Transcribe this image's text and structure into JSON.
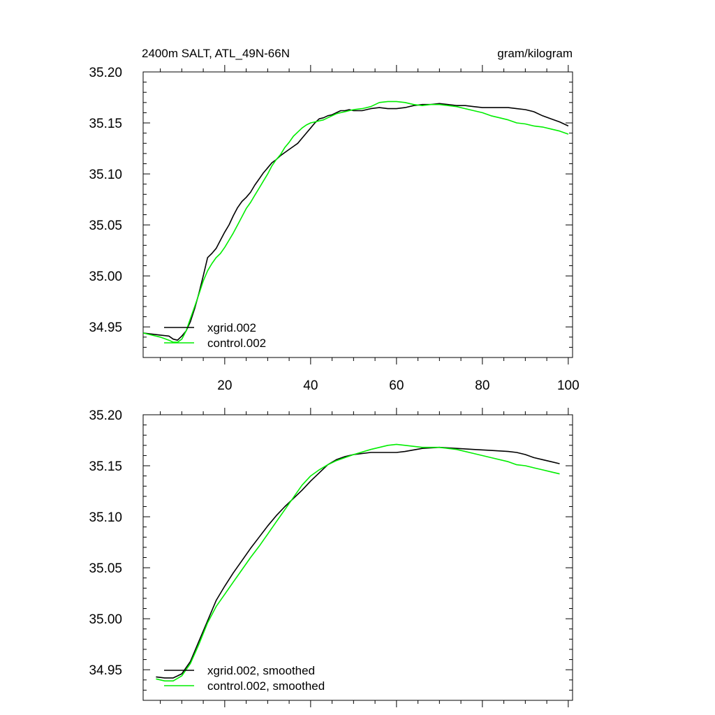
{
  "header": {
    "title": "2400m SALT, ATL_49N-66N",
    "units": "gram/kilogram"
  },
  "colors": {
    "xgrid": "#000000",
    "control": "#00ee00"
  },
  "chart_data": [
    {
      "type": "line",
      "xlim": [
        1,
        101
      ],
      "ylim": [
        34.92,
        35.2
      ],
      "yticks": [
        "35.20",
        "35.15",
        "35.10",
        "35.05",
        "35.00",
        "34.95"
      ],
      "xticks": [
        "20",
        "40",
        "60",
        "80",
        "100"
      ],
      "legend_position": "bottom-left",
      "series": [
        {
          "name": "xgrid.002",
          "x": [
            1,
            3,
            5,
            7,
            8,
            9,
            10,
            11,
            12,
            13,
            14,
            15,
            16,
            17,
            18,
            19,
            20,
            21,
            22,
            23,
            24,
            25,
            26,
            27,
            28,
            29,
            30,
            31,
            32,
            33,
            34,
            35,
            36,
            37,
            38,
            39,
            40,
            41,
            42,
            43,
            44,
            45,
            46,
            47,
            48,
            49,
            50,
            52,
            54,
            56,
            58,
            60,
            62,
            64,
            66,
            68,
            70,
            72,
            74,
            76,
            78,
            80,
            82,
            84,
            86,
            88,
            90,
            92,
            94,
            96,
            98,
            100
          ],
          "y": [
            34.944,
            34.943,
            34.942,
            34.941,
            34.938,
            34.937,
            34.941,
            34.946,
            34.955,
            34.968,
            34.983,
            35.0,
            35.018,
            35.022,
            35.027,
            35.035,
            35.043,
            35.05,
            35.059,
            35.067,
            35.073,
            35.077,
            35.082,
            35.089,
            35.095,
            35.101,
            35.106,
            35.111,
            35.114,
            35.118,
            35.121,
            35.124,
            35.127,
            35.13,
            35.135,
            35.14,
            35.145,
            35.15,
            35.154,
            35.155,
            35.157,
            35.158,
            35.16,
            35.162,
            35.162,
            35.163,
            35.162,
            35.162,
            35.164,
            35.165,
            35.164,
            35.164,
            35.165,
            35.167,
            35.168,
            35.168,
            35.169,
            35.168,
            35.167,
            35.167,
            35.166,
            35.165,
            35.165,
            35.165,
            35.165,
            35.164,
            35.163,
            35.161,
            35.157,
            35.154,
            35.151,
            35.147
          ]
        },
        {
          "name": "control.002",
          "x": [
            1,
            3,
            5,
            7,
            8,
            9,
            10,
            11,
            12,
            13,
            14,
            15,
            16,
            17,
            18,
            19,
            20,
            21,
            22,
            23,
            24,
            25,
            26,
            27,
            28,
            29,
            30,
            31,
            32,
            33,
            34,
            35,
            36,
            37,
            38,
            39,
            40,
            41,
            42,
            43,
            44,
            45,
            46,
            47,
            48,
            49,
            50,
            52,
            54,
            56,
            58,
            60,
            62,
            64,
            66,
            68,
            70,
            72,
            74,
            76,
            78,
            80,
            82,
            84,
            86,
            88,
            90,
            92,
            94,
            96,
            98,
            100
          ],
          "y": [
            34.944,
            34.942,
            34.94,
            34.937,
            34.935,
            34.935,
            34.938,
            34.946,
            34.958,
            34.97,
            34.982,
            34.995,
            35.005,
            35.012,
            35.018,
            35.022,
            35.028,
            35.035,
            35.042,
            35.05,
            35.058,
            35.066,
            35.072,
            35.079,
            35.086,
            35.093,
            35.1,
            35.108,
            35.114,
            35.119,
            35.126,
            35.131,
            35.137,
            35.141,
            35.145,
            35.148,
            35.15,
            35.151,
            35.152,
            35.153,
            35.155,
            35.157,
            35.159,
            35.16,
            35.161,
            35.162,
            35.163,
            35.164,
            35.166,
            35.17,
            35.171,
            35.171,
            35.17,
            35.168,
            35.167,
            35.168,
            35.168,
            35.167,
            35.166,
            35.164,
            35.162,
            35.16,
            35.157,
            35.155,
            35.153,
            35.15,
            35.149,
            35.147,
            35.146,
            35.144,
            35.142,
            35.139
          ]
        }
      ]
    },
    {
      "type": "line",
      "xlim": [
        1,
        101
      ],
      "ylim": [
        34.92,
        35.2
      ],
      "yticks": [
        "35.20",
        "35.15",
        "35.10",
        "35.05",
        "35.00",
        "34.95"
      ],
      "xticks": [],
      "legend_position": "bottom-left",
      "series": [
        {
          "name": "xgrid.002, smoothed",
          "x": [
            4,
            6,
            8,
            10,
            12,
            14,
            16,
            18,
            20,
            22,
            24,
            26,
            28,
            30,
            32,
            34,
            36,
            38,
            40,
            42,
            44,
            46,
            48,
            50,
            54,
            58,
            60,
            62,
            66,
            70,
            74,
            78,
            82,
            86,
            88,
            90,
            92,
            94,
            96,
            98
          ],
          "y": [
            34.943,
            34.942,
            34.942,
            34.946,
            34.958,
            34.978,
            34.998,
            35.018,
            35.032,
            35.045,
            35.057,
            35.069,
            35.08,
            35.091,
            35.101,
            35.11,
            35.118,
            35.126,
            35.135,
            35.143,
            35.151,
            35.156,
            35.159,
            35.161,
            35.163,
            35.163,
            35.163,
            35.164,
            35.167,
            35.168,
            35.167,
            35.166,
            35.165,
            35.164,
            35.163,
            35.161,
            35.158,
            35.156,
            35.154,
            35.152
          ]
        },
        {
          "name": "control.002, smoothed",
          "x": [
            4,
            6,
            8,
            10,
            12,
            14,
            16,
            18,
            20,
            22,
            24,
            26,
            28,
            30,
            32,
            34,
            36,
            38,
            40,
            42,
            44,
            46,
            48,
            50,
            54,
            58,
            60,
            62,
            66,
            70,
            74,
            78,
            82,
            86,
            88,
            90,
            92,
            94,
            96,
            98
          ],
          "y": [
            34.941,
            34.939,
            34.939,
            34.944,
            34.956,
            34.975,
            34.996,
            35.012,
            35.024,
            35.036,
            35.048,
            35.06,
            35.071,
            35.083,
            35.095,
            35.107,
            35.119,
            35.131,
            35.14,
            35.146,
            35.151,
            35.155,
            35.158,
            35.161,
            35.166,
            35.17,
            35.171,
            35.17,
            35.168,
            35.168,
            35.166,
            35.162,
            35.158,
            35.154,
            35.151,
            35.15,
            35.148,
            35.146,
            35.144,
            35.142
          ]
        }
      ]
    }
  ]
}
